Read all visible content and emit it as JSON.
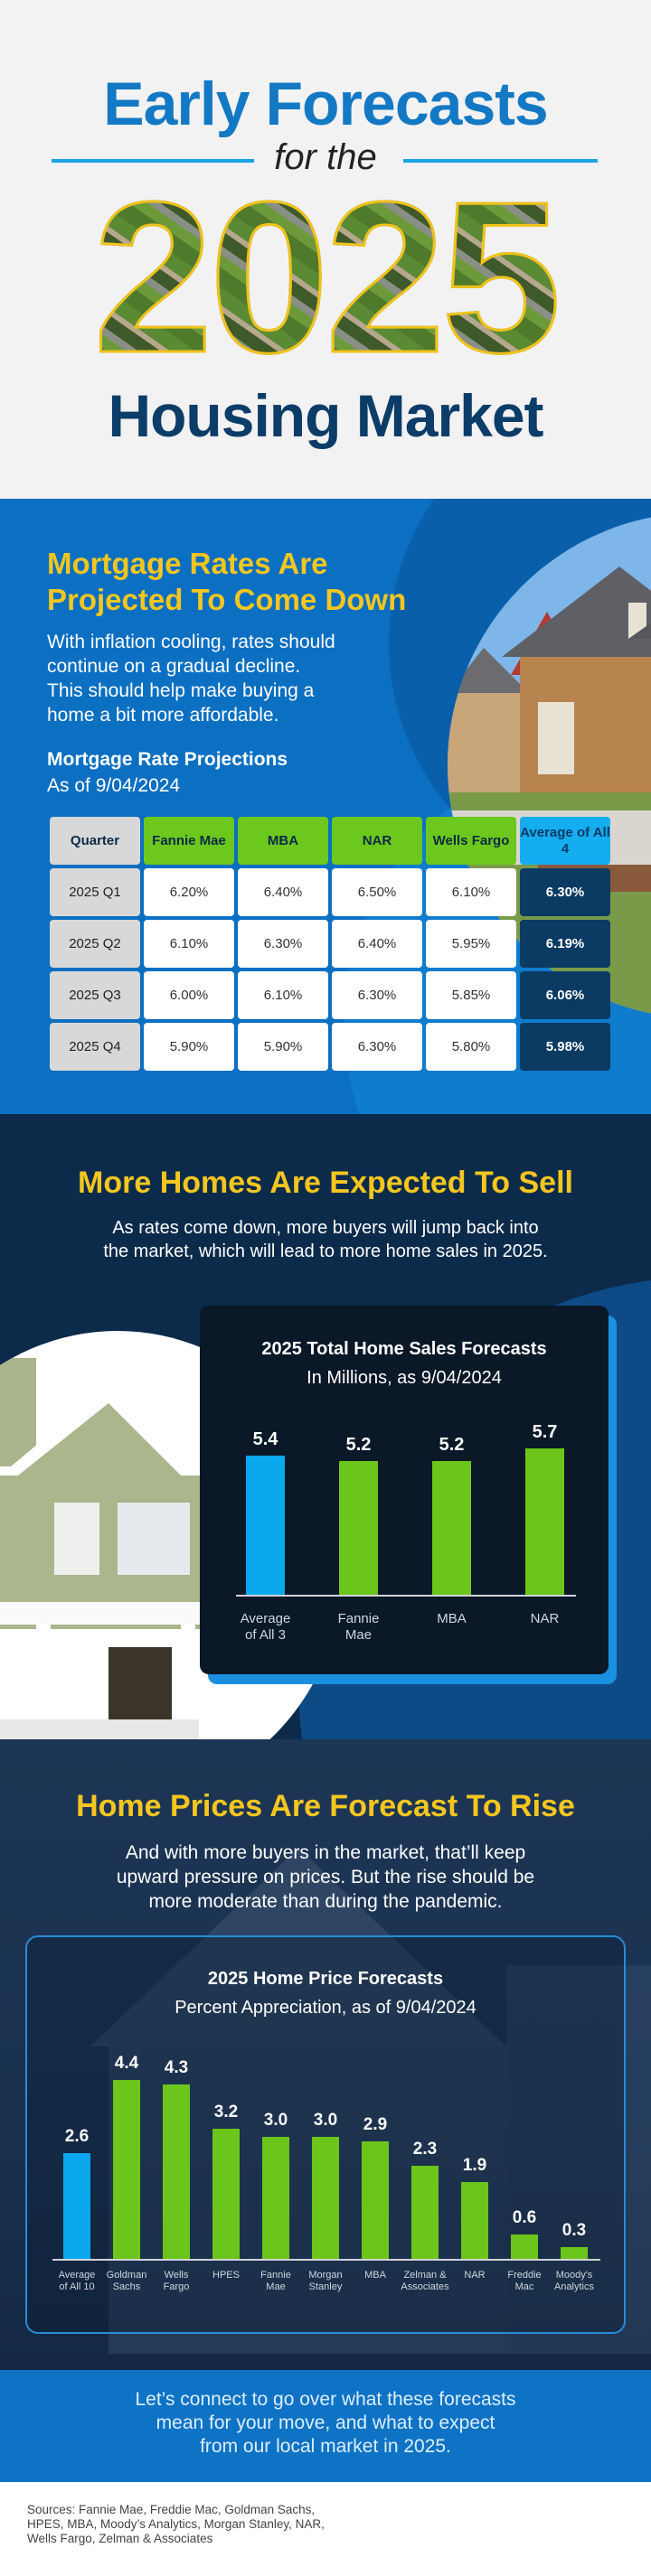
{
  "header": {
    "title_line1": "Early Forecasts",
    "title_line2": "for the",
    "title_year": "2025",
    "title_line3": "Housing Market"
  },
  "mortgage": {
    "heading_lines": [
      "Mortgage Rates Are",
      "Projected To Come Down"
    ],
    "paragraph_lines": [
      "With inflation cooling, rates should",
      "continue on a gradual decline.",
      "This should help make buying a",
      "home a bit more affordable."
    ],
    "table_title": "Mortgage Rate Projections",
    "table_subtitle": "As of 9/04/2024",
    "table": {
      "headers": [
        "Quarter",
        "Fannie Mae",
        "MBA",
        "NAR",
        "Wells Fargo",
        "Average of All 4"
      ],
      "rows": [
        [
          "2025 Q1",
          "6.20%",
          "6.40%",
          "6.50%",
          "6.10%",
          "6.30%"
        ],
        [
          "2025 Q2",
          "6.10%",
          "6.30%",
          "6.40%",
          "5.95%",
          "6.19%"
        ],
        [
          "2025 Q3",
          "6.00%",
          "6.10%",
          "6.30%",
          "5.85%",
          "6.06%"
        ],
        [
          "2025 Q4",
          "5.90%",
          "5.90%",
          "6.30%",
          "5.80%",
          "5.98%"
        ]
      ]
    }
  },
  "sales": {
    "heading": "More Homes Are Expected To Sell",
    "paragraph_lines": [
      "As rates come down, more buyers will jump back into",
      "the market, which will lead to more home sales in 2025."
    ]
  },
  "prices": {
    "heading": "Home Prices Are Forecast To Rise",
    "paragraph_lines": [
      "And with more buyers in the market, that’ll keep",
      "upward pressure on prices. But the rise should be",
      "more moderate than during the pandemic."
    ]
  },
  "cta": {
    "lines": [
      "Let’s connect to go over what these forecasts",
      "mean for your move, and what to expect",
      "from our local market in 2025."
    ]
  },
  "sources": {
    "lines": [
      "Sources: Fannie Mae, Freddie Mac, Goldman Sachs,",
      "HPES, MBA, Moody’s Analytics, Morgan Stanley, NAR,",
      "Wells Fargo, Zelman & Associates"
    ]
  },
  "colors": {
    "accent_blue": "#0aa8ec",
    "green": "#6cc51a",
    "yellow": "#f4c61f",
    "navy": "#0b3a62"
  },
  "chart_data": [
    {
      "type": "bar",
      "title": "2025 Total Home Sales Forecasts",
      "subtitle": "In Millions, as 9/04/2024",
      "categories": [
        [
          "Average",
          "of All 3"
        ],
        [
          "Fannie",
          "Mae"
        ],
        [
          "MBA"
        ],
        [
          "NAR"
        ]
      ],
      "values": [
        5.4,
        5.2,
        5.2,
        5.7
      ],
      "value_labels": [
        "5.4",
        "5.2",
        "5.2",
        "5.7"
      ],
      "bar_colors": [
        "#0aa8ec",
        "#6cc51a",
        "#6cc51a",
        "#6cc51a"
      ],
      "ylim": [
        0,
        6
      ],
      "grid": false
    },
    {
      "type": "bar",
      "title": "2025 Home Price Forecasts",
      "subtitle": "Percent Appreciation, as of 9/04/2024",
      "categories": [
        [
          "Average",
          "of All 10"
        ],
        [
          "Goldman",
          "Sachs"
        ],
        [
          "Wells",
          "Fargo"
        ],
        [
          "HPES"
        ],
        [
          "Fannie",
          "Mae"
        ],
        [
          "Morgan",
          "Stanley"
        ],
        [
          "MBA"
        ],
        [
          "Zelman &",
          "Associates"
        ],
        [
          "NAR"
        ],
        [
          "Freddie",
          "Mac"
        ],
        [
          "Moody's",
          "Analytics"
        ]
      ],
      "values": [
        2.6,
        4.4,
        4.3,
        3.2,
        3.0,
        3.0,
        2.9,
        2.3,
        1.9,
        0.6,
        0.3
      ],
      "value_labels": [
        "2.6",
        "4.4",
        "4.3",
        "3.2",
        "3.0",
        "3.0",
        "2.9",
        "2.3",
        "1.9",
        "0.6",
        "0.3"
      ],
      "bar_colors": [
        "#0aa8ec",
        "#6cc51a",
        "#6cc51a",
        "#6cc51a",
        "#6cc51a",
        "#6cc51a",
        "#6cc51a",
        "#6cc51a",
        "#6cc51a",
        "#6cc51a",
        "#6cc51a"
      ],
      "ylim": [
        0,
        5
      ],
      "grid": false
    }
  ]
}
